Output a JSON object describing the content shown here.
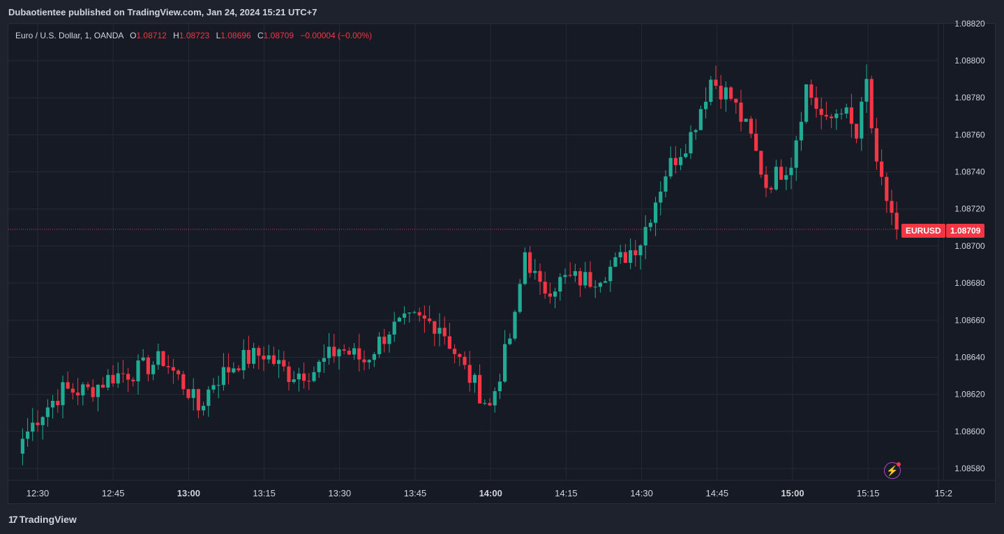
{
  "header": {
    "publisher_line": "Dubaotientee published on TradingView.com, Jan 24, 2024 15:21 UTC+7"
  },
  "legend": {
    "symbol": "Euro / U.S. Dollar, 1, OANDA",
    "open_label": "O",
    "open_value": "1.08712",
    "high_label": "H",
    "high_value": "1.08723",
    "low_label": "L",
    "low_value": "1.08696",
    "close_label": "C",
    "close_value": "1.08709",
    "change": "−0.00004 (−0.00%)"
  },
  "price_badges": {
    "symbol": "EURUSD",
    "price": "1.08709"
  },
  "footer": {
    "brand": "TradingView"
  },
  "colors": {
    "up": "#22ab94",
    "down": "#f23645",
    "background": "#161a25",
    "grid": "#262a36",
    "text": "#d1d4dc"
  },
  "icons": [
    "tradingview-logo-icon",
    "lightning-icon"
  ],
  "chart_data": {
    "type": "candlestick",
    "symbol": "EURUSD",
    "interval": "1",
    "ylim": [
      1.08575,
      1.08822
    ],
    "y_ticks": [
      "1.08580",
      "1.08600",
      "1.08620",
      "1.08640",
      "1.08660",
      "1.08680",
      "1.08700",
      "1.08720",
      "1.08740",
      "1.08760",
      "1.08780",
      "1.08800",
      "1.08820"
    ],
    "x_ticks": [
      {
        "label": "12:30",
        "bold": false
      },
      {
        "label": "12:45",
        "bold": false
      },
      {
        "label": "13:00",
        "bold": true
      },
      {
        "label": "13:15",
        "bold": false
      },
      {
        "label": "13:30",
        "bold": false
      },
      {
        "label": "13:45",
        "bold": false
      },
      {
        "label": "14:00",
        "bold": true
      },
      {
        "label": "14:15",
        "bold": false
      },
      {
        "label": "14:30",
        "bold": false
      },
      {
        "label": "14:45",
        "bold": false
      },
      {
        "label": "15:00",
        "bold": true
      },
      {
        "label": "15:15",
        "bold": false
      },
      {
        "label": "15:2",
        "bold": false
      }
    ],
    "last_price": 1.08709,
    "close_path": [
      [
        "12:27",
        1.08596
      ],
      [
        "12:30",
        1.08608
      ],
      [
        "12:35",
        1.08622
      ],
      [
        "12:40",
        1.08622
      ],
      [
        "12:45",
        1.0863
      ],
      [
        "12:50",
        1.08633
      ],
      [
        "12:55",
        1.08639
      ],
      [
        "13:00",
        1.08622
      ],
      [
        "13:02",
        1.08612
      ],
      [
        "13:05",
        1.08627
      ],
      [
        "13:10",
        1.08638
      ],
      [
        "13:15",
        1.08642
      ],
      [
        "13:20",
        1.08631
      ],
      [
        "13:25",
        1.08633
      ],
      [
        "13:30",
        1.08645
      ],
      [
        "13:35",
        1.08638
      ],
      [
        "13:40",
        1.08655
      ],
      [
        "13:45",
        1.0866
      ],
      [
        "13:50",
        1.08658
      ],
      [
        "13:55",
        1.08633
      ],
      [
        "14:00",
        1.08613
      ],
      [
        "14:05",
        1.0866
      ],
      [
        "14:07",
        1.08697
      ],
      [
        "14:10",
        1.08676
      ],
      [
        "14:15",
        1.08682
      ],
      [
        "14:20",
        1.08682
      ],
      [
        "14:25",
        1.0869
      ],
      [
        "14:30",
        1.08703
      ],
      [
        "14:35",
        1.0874
      ],
      [
        "14:40",
        1.0876
      ],
      [
        "14:44",
        1.0879
      ],
      [
        "14:48",
        1.0878
      ],
      [
        "14:52",
        1.08758
      ],
      [
        "14:55",
        1.08733
      ],
      [
        "15:00",
        1.08746
      ],
      [
        "15:03",
        1.08786
      ],
      [
        "15:07",
        1.08765
      ],
      [
        "15:10",
        1.08776
      ],
      [
        "15:13",
        1.08758
      ],
      [
        "15:15",
        1.08788
      ],
      [
        "15:17",
        1.0874
      ],
      [
        "15:20",
        1.08718
      ],
      [
        "15:21",
        1.08709
      ]
    ]
  }
}
